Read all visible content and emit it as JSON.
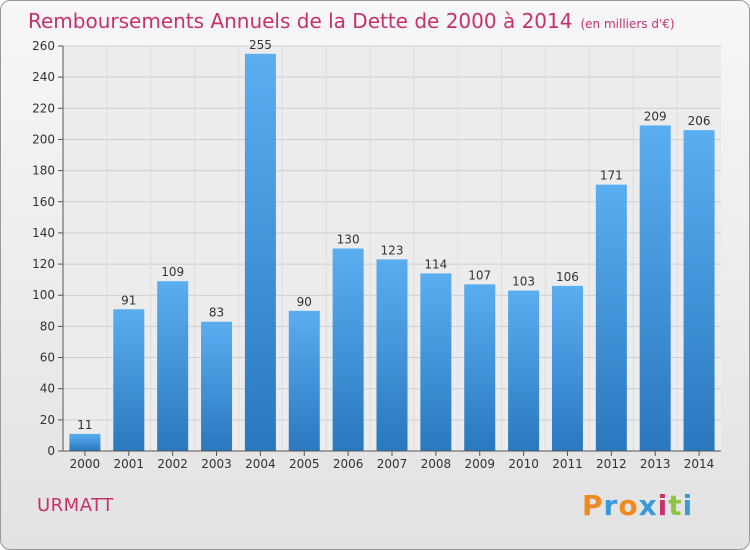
{
  "chart_data": {
    "type": "bar",
    "title": "Remboursements Annuels de la Dette de 2000 à 2014",
    "unit_note": "(en milliers d'€)",
    "categories": [
      "2000",
      "2001",
      "2002",
      "2003",
      "2004",
      "2005",
      "2006",
      "2007",
      "2008",
      "2009",
      "2010",
      "2011",
      "2012",
      "2013",
      "2014"
    ],
    "values": [
      11,
      91,
      109,
      83,
      255,
      90,
      130,
      123,
      114,
      107,
      103,
      106,
      171,
      209,
      206
    ],
    "ylim": [
      0,
      260
    ],
    "yticks": [
      0,
      20,
      40,
      60,
      80,
      100,
      120,
      140,
      160,
      180,
      200,
      220,
      240,
      260
    ],
    "grid": true,
    "xlabel": "",
    "ylabel": ""
  },
  "commune": "URMATT",
  "logo": {
    "letters": [
      "P",
      "r",
      "o",
      "x",
      "i",
      "t",
      "i"
    ],
    "colors": [
      "#f08a1e",
      "#3a9ad9",
      "#f08a1e",
      "#3a9ad9",
      "#c8306c",
      "#8cc63f",
      "#3a9ad9"
    ]
  },
  "colors": {
    "title": "#c8306c",
    "bar_top": "#5aaef0",
    "bar_bottom": "#2a78be",
    "grid": "#cfcfcf"
  }
}
